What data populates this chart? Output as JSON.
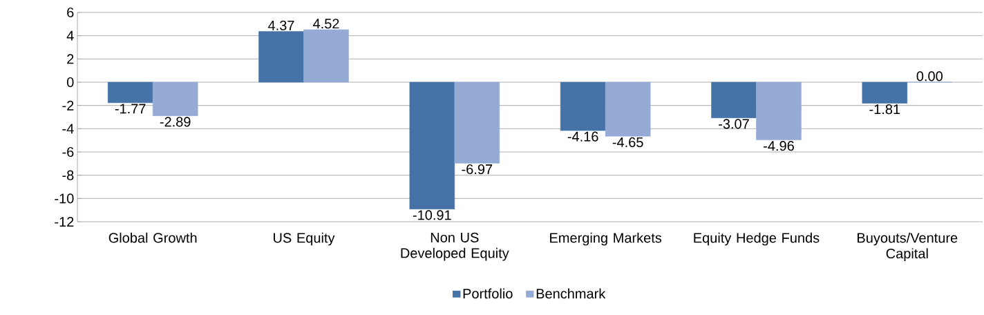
{
  "chart_data": {
    "type": "bar",
    "categories": [
      "Global Growth",
      "US Equity",
      "Non US Developed Equity",
      "Emerging Markets",
      "Equity Hedge Funds",
      "Buyouts/Venture Capital"
    ],
    "series": [
      {
        "name": "Portfolio",
        "color": "#4572a7",
        "values": [
          -1.77,
          4.37,
          -10.91,
          -4.16,
          -3.07,
          -1.81
        ],
        "value_labels": [
          "-1.77",
          "4.37",
          "-10.91",
          "-4.16",
          "-3.07",
          "-1.81"
        ]
      },
      {
        "name": "Benchmark",
        "color": "#95abd6",
        "values": [
          -2.89,
          4.52,
          -6.97,
          -4.65,
          -4.96,
          0
        ],
        "value_labels": [
          "-2.89",
          "4.52",
          "-6.97",
          "-4.65",
          "-4.96",
          "0.00"
        ]
      }
    ],
    "ylim": [
      -12,
      6
    ],
    "yticks": [
      -12,
      -10,
      -8,
      -6,
      -4,
      -2,
      0,
      2,
      4,
      6
    ],
    "grid": "y",
    "legend": "bottom"
  }
}
